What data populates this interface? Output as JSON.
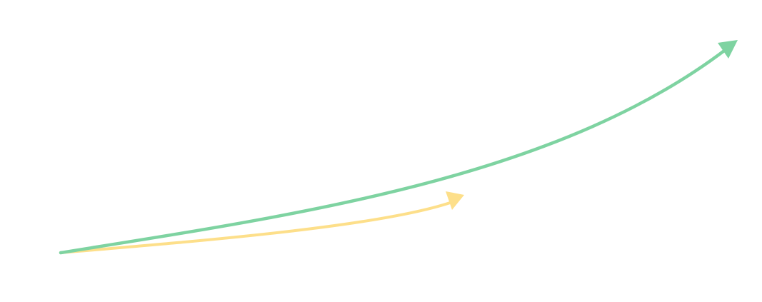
{
  "arrows": [
    {
      "id": "green-arrow",
      "color": "#7ed3a1"
    },
    {
      "id": "yellow-arrow",
      "color": "#fddf8a"
    }
  ]
}
